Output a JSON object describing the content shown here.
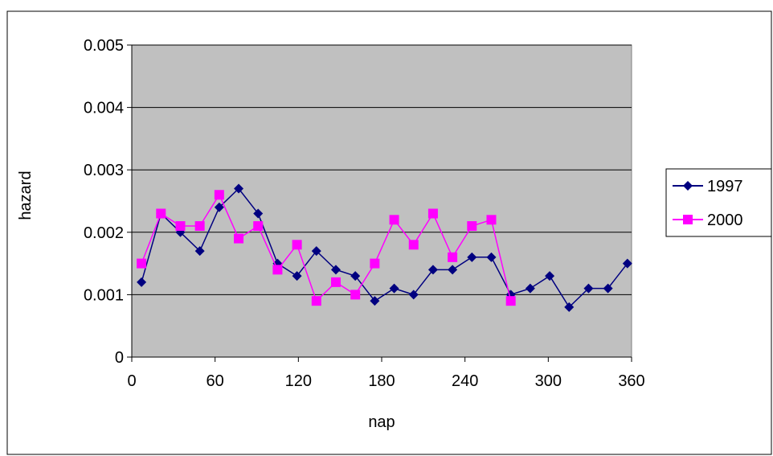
{
  "chart_data": {
    "type": "line",
    "title": "",
    "xlabel": "nap",
    "ylabel": "hazard",
    "xlim": [
      0,
      360
    ],
    "ylim": [
      0,
      0.005
    ],
    "x_ticks": [
      0,
      60,
      120,
      180,
      240,
      300,
      360
    ],
    "y_ticks": [
      0,
      0.001,
      0.002,
      0.003,
      0.004,
      0.005
    ],
    "x_tick_labels": [
      "0",
      "60",
      "120",
      "180",
      "240",
      "300",
      "360"
    ],
    "y_tick_labels": [
      "0",
      "0.001",
      "0.002",
      "0.003",
      "0.004",
      "0.005"
    ],
    "grid": true,
    "plot_background": "#c0c0c0",
    "legend_position": "right",
    "series": [
      {
        "name": "1997",
        "color": "#000080",
        "marker": "diamond",
        "x": [
          7,
          21,
          35,
          49,
          63,
          77,
          91,
          105,
          119,
          133,
          147,
          161,
          175,
          189,
          203,
          217,
          231,
          245,
          259,
          273,
          287,
          301,
          315,
          329,
          343,
          357
        ],
        "values": [
          0.0012,
          0.0023,
          0.002,
          0.0017,
          0.0024,
          0.0027,
          0.0023,
          0.0015,
          0.0013,
          0.0017,
          0.0014,
          0.0013,
          0.0009,
          0.0011,
          0.001,
          0.0014,
          0.0014,
          0.0016,
          0.0016,
          0.001,
          0.0011,
          0.0013,
          0.0008,
          0.0011,
          0.0011,
          0.0015
        ]
      },
      {
        "name": "2000",
        "color": "#ff00ff",
        "marker": "square",
        "x": [
          7,
          21,
          35,
          49,
          63,
          77,
          91,
          105,
          119,
          133,
          147,
          161,
          175,
          189,
          203,
          217,
          231,
          245,
          259,
          273
        ],
        "values": [
          0.0015,
          0.0023,
          0.0021,
          0.0021,
          0.0026,
          0.0019,
          0.0021,
          0.0014,
          0.0018,
          0.0009,
          0.0012,
          0.001,
          0.0015,
          0.0022,
          0.0018,
          0.0023,
          0.0016,
          0.0021,
          0.0022,
          0.0009
        ]
      }
    ]
  }
}
